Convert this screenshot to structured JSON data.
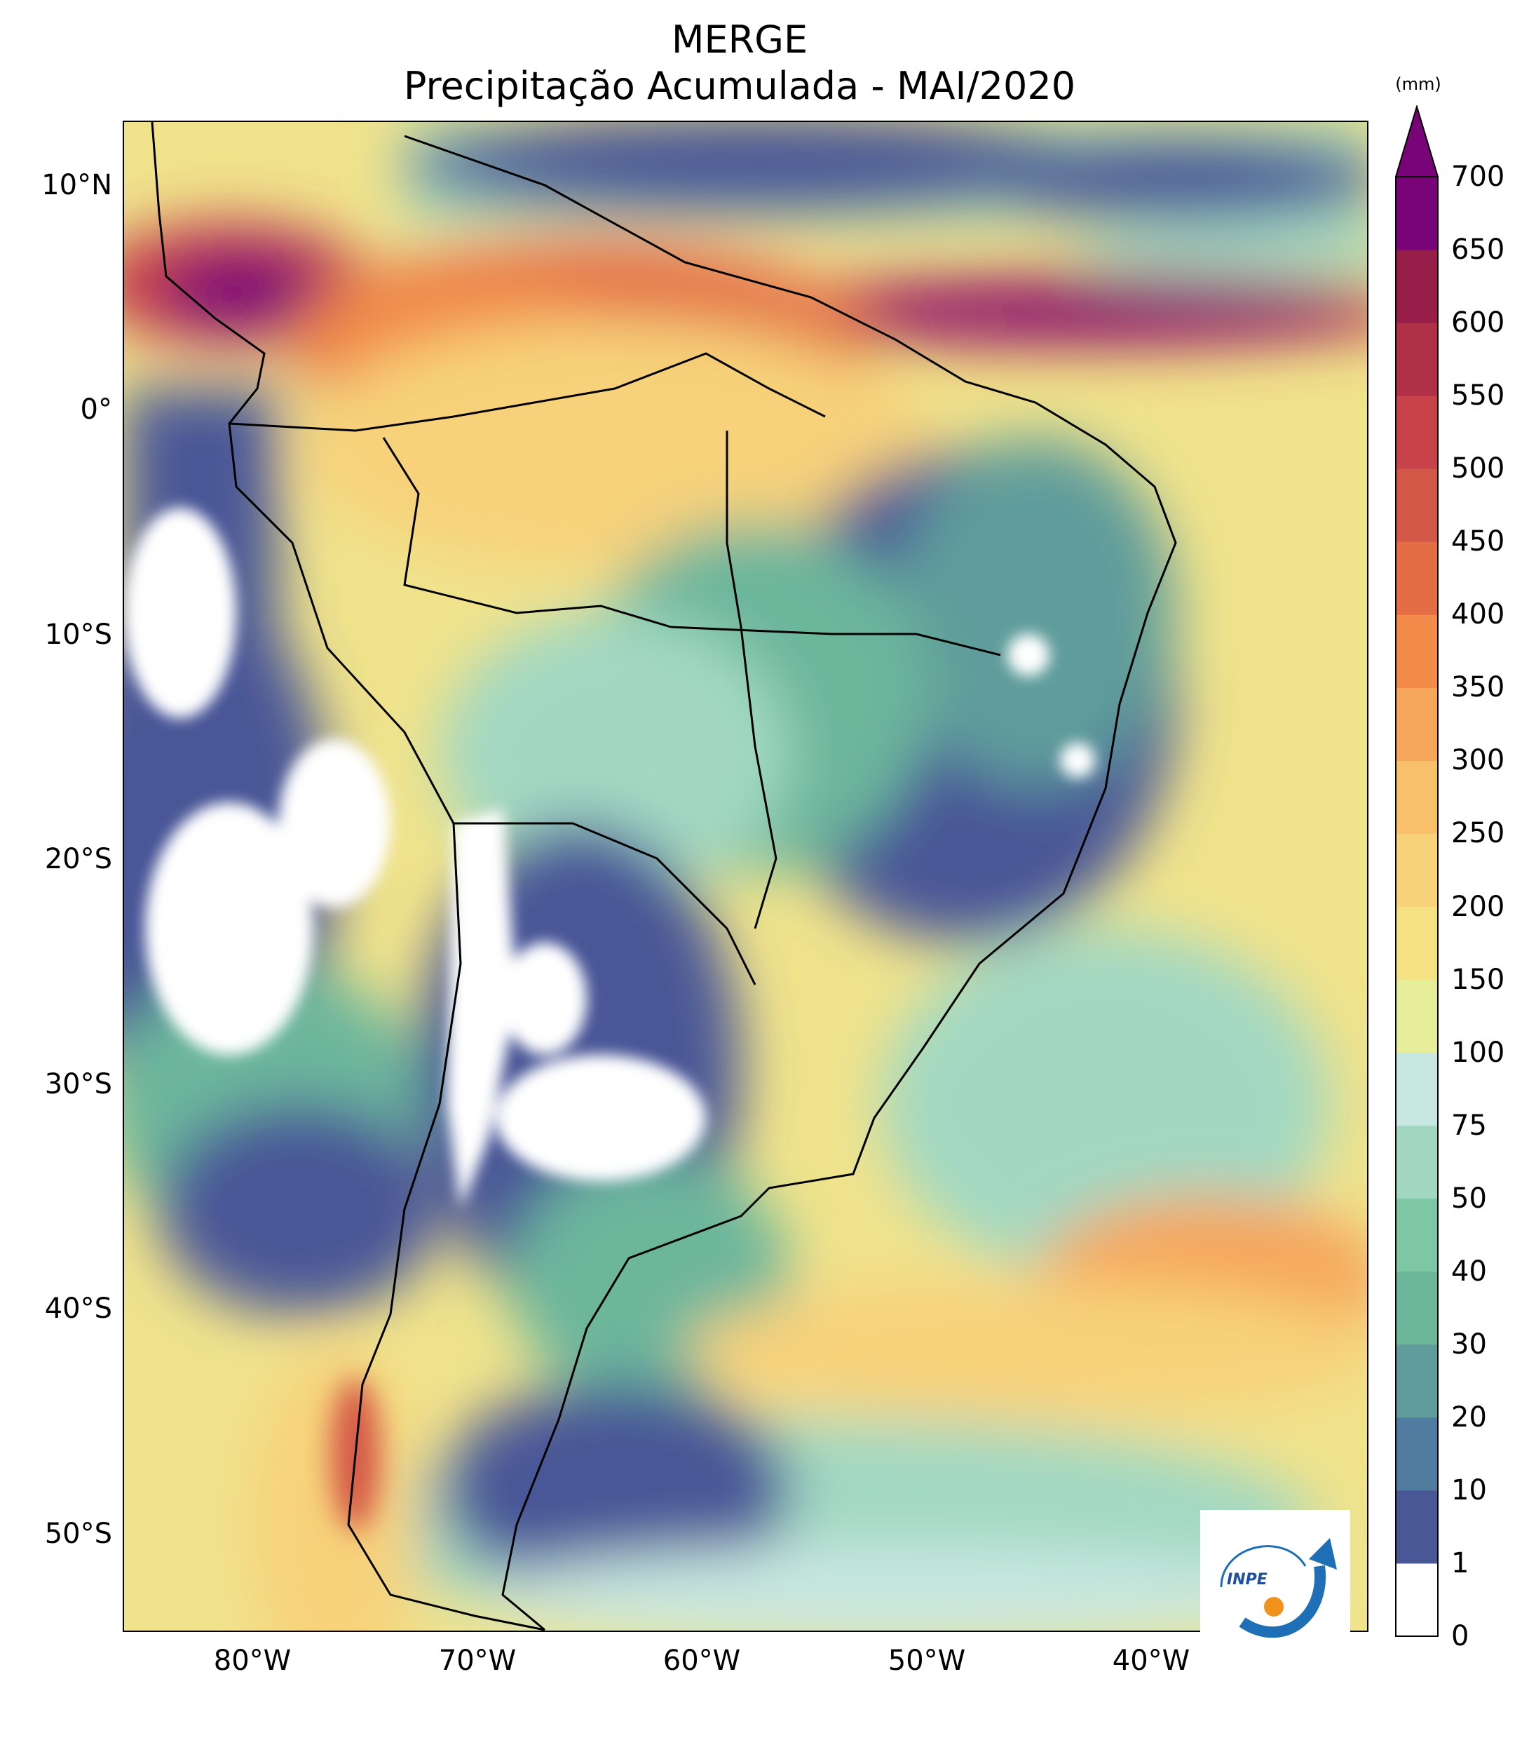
{
  "title": {
    "line1": "MERGE",
    "line2": "Precipitação Acumulada - MAI/2020"
  },
  "map": {
    "region": "South America",
    "lat_ticks": [
      "10°N",
      "0°",
      "10°S",
      "20°S",
      "30°S",
      "40°S",
      "50°S"
    ],
    "lon_ticks": [
      "80°W",
      "70°W",
      "60°W",
      "50°W",
      "40°W"
    ],
    "extent": {
      "lon_min": -85.4,
      "lon_max": -30.0,
      "lat_min": -56.0,
      "lat_max": 12.7
    }
  },
  "colorbar": {
    "unit": "(mm)",
    "labels": [
      "0",
      "1",
      "10",
      "20",
      "30",
      "40",
      "50",
      "75",
      "100",
      "150",
      "200",
      "250",
      "300",
      "350",
      "400",
      "450",
      "500",
      "550",
      "600",
      "650",
      "700"
    ],
    "colors": [
      "#ffffff",
      "#4a5797",
      "#527c9f",
      "#5f9c9b",
      "#6cb69c",
      "#7ec7a4",
      "#a2d8c2",
      "#c8e7e0",
      "#e6ee99",
      "#f3e184",
      "#f7d27a",
      "#f9c06c",
      "#f6a65b",
      "#f28b4a",
      "#e46d46",
      "#d45847",
      "#c8424a",
      "#b03048",
      "#961e48",
      "#780477"
    ]
  },
  "logo": {
    "text": "INPE"
  }
}
